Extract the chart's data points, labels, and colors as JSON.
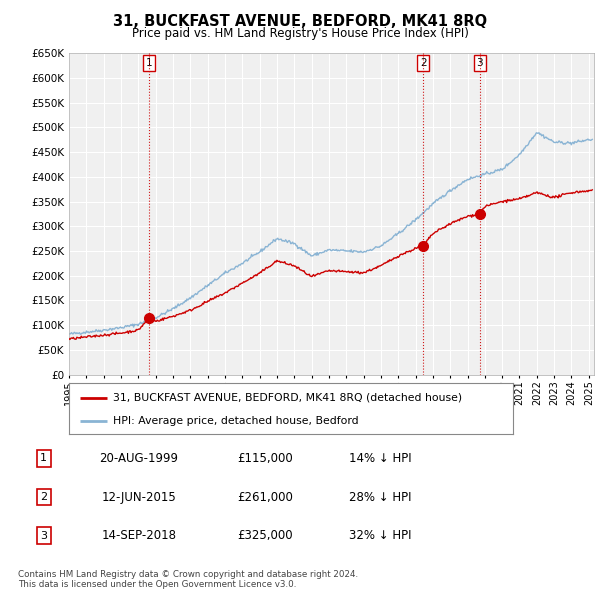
{
  "title": "31, BUCKFAST AVENUE, BEDFORD, MK41 8RQ",
  "subtitle": "Price paid vs. HM Land Registry's House Price Index (HPI)",
  "footer": "Contains HM Land Registry data © Crown copyright and database right 2024.\nThis data is licensed under the Open Government Licence v3.0.",
  "legend_line1": "31, BUCKFAST AVENUE, BEDFORD, MK41 8RQ (detached house)",
  "legend_line2": "HPI: Average price, detached house, Bedford",
  "transactions": [
    {
      "num": 1,
      "date": "20-AUG-1999",
      "price": 115000,
      "hpi_diff": "14% ↓ HPI",
      "year": 1999.63
    },
    {
      "num": 2,
      "date": "12-JUN-2015",
      "price": 261000,
      "hpi_diff": "28% ↓ HPI",
      "year": 2015.45
    },
    {
      "num": 3,
      "date": "14-SEP-2018",
      "price": 325000,
      "hpi_diff": "32% ↓ HPI",
      "year": 2018.71
    }
  ],
  "ylim": [
    0,
    650000
  ],
  "yticks": [
    0,
    50000,
    100000,
    150000,
    200000,
    250000,
    300000,
    350000,
    400000,
    450000,
    500000,
    550000,
    600000,
    650000
  ],
  "background_color": "#ffffff",
  "plot_bg_color": "#f0f0f0",
  "red_color": "#cc0000",
  "blue_color": "#8ab4d4",
  "grid_color": "#ffffff",
  "xlim_start": 1995,
  "xlim_end": 2025.3
}
